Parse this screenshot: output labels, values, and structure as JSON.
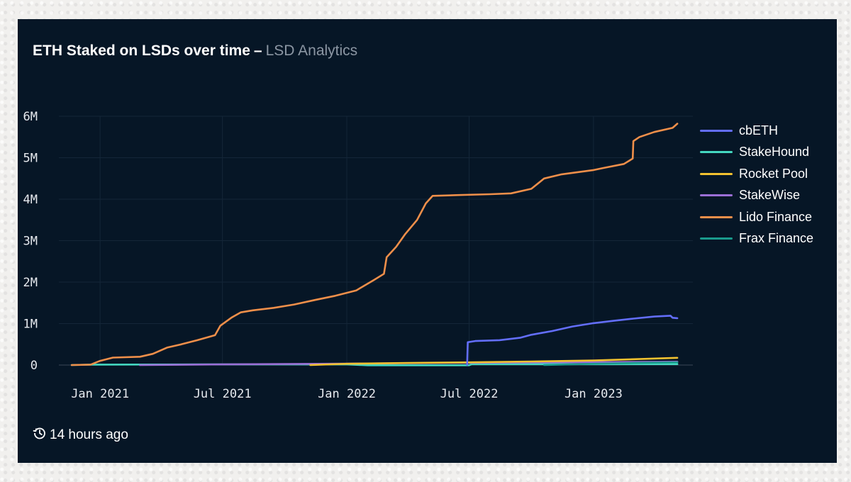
{
  "header": {
    "title": "ETH Staked on LSDs over time",
    "separator": "–",
    "subtitle": "LSD Analytics"
  },
  "footer": {
    "updated": "14 hours ago",
    "icon": "history-clock-icon"
  },
  "chart_data": {
    "type": "line",
    "title": "ETH Staked on LSDs over time",
    "xlabel": "",
    "ylabel": "",
    "ylim": [
      0,
      6000000
    ],
    "xlim": [
      "2020-11-01",
      "2023-05-28"
    ],
    "grid": true,
    "legend_position": "right",
    "x_ticks": [
      {
        "date": "2021-01-01",
        "label": "Jan 2021"
      },
      {
        "date": "2021-07-01",
        "label": "Jul 2021"
      },
      {
        "date": "2022-01-01",
        "label": "Jan 2022"
      },
      {
        "date": "2022-07-01",
        "label": "Jul 2022"
      },
      {
        "date": "2023-01-01",
        "label": "Jan 2023"
      }
    ],
    "y_ticks": [
      {
        "value": 0,
        "label": "0"
      },
      {
        "value": 1000000,
        "label": "1M"
      },
      {
        "value": 2000000,
        "label": "2M"
      },
      {
        "value": 3000000,
        "label": "3M"
      },
      {
        "value": 4000000,
        "label": "4M"
      },
      {
        "value": 5000000,
        "label": "5M"
      },
      {
        "value": 6000000,
        "label": "6M"
      }
    ],
    "series": [
      {
        "name": "cbETH",
        "color": "#636efa",
        "points": [
          [
            "2022-06-28",
            0
          ],
          [
            "2022-06-29",
            550000
          ],
          [
            "2022-07-10",
            580000
          ],
          [
            "2022-08-15",
            600000
          ],
          [
            "2022-09-15",
            660000
          ],
          [
            "2022-10-01",
            730000
          ],
          [
            "2022-11-01",
            820000
          ],
          [
            "2022-12-01",
            930000
          ],
          [
            "2023-01-01",
            1010000
          ],
          [
            "2023-02-01",
            1070000
          ],
          [
            "2023-03-01",
            1120000
          ],
          [
            "2023-04-01",
            1170000
          ],
          [
            "2023-04-25",
            1190000
          ],
          [
            "2023-04-28",
            1140000
          ],
          [
            "2023-05-05",
            1130000
          ]
        ]
      },
      {
        "name": "StakeHound",
        "color": "#44d7c0",
        "points": [
          [
            "2020-11-20",
            0
          ],
          [
            "2020-12-20",
            10000
          ],
          [
            "2021-06-01",
            15000
          ],
          [
            "2022-01-01",
            15000
          ],
          [
            "2022-02-01",
            -5000
          ],
          [
            "2022-07-01",
            -5000
          ],
          [
            "2022-07-05",
            20000
          ],
          [
            "2023-05-05",
            22000
          ]
        ]
      },
      {
        "name": "Rocket Pool",
        "color": "#f2c230",
        "points": [
          [
            "2021-11-08",
            0
          ],
          [
            "2022-01-01",
            30000
          ],
          [
            "2022-04-01",
            50000
          ],
          [
            "2022-07-01",
            65000
          ],
          [
            "2022-10-01",
            85000
          ],
          [
            "2023-01-01",
            110000
          ],
          [
            "2023-03-01",
            140000
          ],
          [
            "2023-05-05",
            175000
          ]
        ]
      },
      {
        "name": "StakeWise",
        "color": "#9b6fd6",
        "points": [
          [
            "2021-03-01",
            0
          ],
          [
            "2021-07-01",
            15000
          ],
          [
            "2022-01-01",
            35000
          ],
          [
            "2022-07-01",
            55000
          ],
          [
            "2023-01-01",
            70000
          ],
          [
            "2023-05-05",
            80000
          ]
        ]
      },
      {
        "name": "Lido Finance",
        "color": "#ef8f4a",
        "points": [
          [
            "2020-11-20",
            0
          ],
          [
            "2020-12-18",
            10000
          ],
          [
            "2021-01-01",
            100000
          ],
          [
            "2021-01-20",
            180000
          ],
          [
            "2021-03-01",
            200000
          ],
          [
            "2021-03-20",
            270000
          ],
          [
            "2021-04-10",
            420000
          ],
          [
            "2021-05-01",
            500000
          ],
          [
            "2021-05-25",
            600000
          ],
          [
            "2021-06-20",
            720000
          ],
          [
            "2021-06-28",
            950000
          ],
          [
            "2021-07-15",
            1150000
          ],
          [
            "2021-07-28",
            1270000
          ],
          [
            "2021-08-15",
            1320000
          ],
          [
            "2021-09-15",
            1380000
          ],
          [
            "2021-10-15",
            1460000
          ],
          [
            "2021-11-15",
            1570000
          ],
          [
            "2021-12-15",
            1670000
          ],
          [
            "2022-01-15",
            1800000
          ],
          [
            "2022-02-10",
            2050000
          ],
          [
            "2022-02-25",
            2200000
          ],
          [
            "2022-03-01",
            2600000
          ],
          [
            "2022-03-15",
            2850000
          ],
          [
            "2022-03-28",
            3150000
          ],
          [
            "2022-04-15",
            3500000
          ],
          [
            "2022-04-28",
            3900000
          ],
          [
            "2022-05-08",
            4080000
          ],
          [
            "2022-06-15",
            4100000
          ],
          [
            "2022-08-01",
            4120000
          ],
          [
            "2022-09-01",
            4140000
          ],
          [
            "2022-10-01",
            4250000
          ],
          [
            "2022-10-20",
            4500000
          ],
          [
            "2022-11-15",
            4600000
          ],
          [
            "2022-12-31",
            4700000
          ],
          [
            "2023-01-15",
            4750000
          ],
          [
            "2023-02-15",
            4850000
          ],
          [
            "2023-02-28",
            4980000
          ],
          [
            "2023-03-01",
            5400000
          ],
          [
            "2023-03-10",
            5500000
          ],
          [
            "2023-04-01",
            5620000
          ],
          [
            "2023-04-28",
            5720000
          ],
          [
            "2023-05-05",
            5820000
          ]
        ]
      },
      {
        "name": "Frax Finance",
        "color": "#1a9a8c",
        "points": [
          [
            "2022-10-20",
            0
          ],
          [
            "2023-01-01",
            30000
          ],
          [
            "2023-03-01",
            50000
          ],
          [
            "2023-05-05",
            65000
          ]
        ]
      }
    ]
  }
}
